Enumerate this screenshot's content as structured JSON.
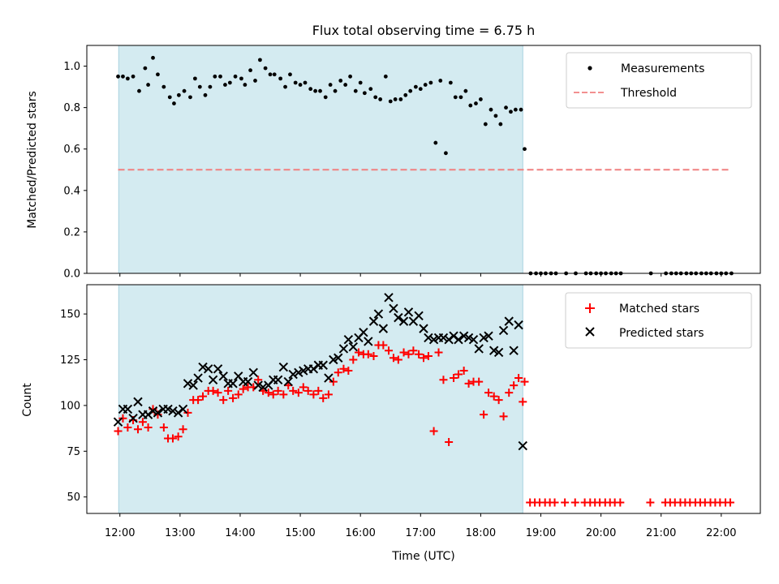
{
  "chart_data": {
    "type": "scatter",
    "title": "Flux total observing time = 6.75 h",
    "xlabel": "Time (UTC)",
    "x_tick_labels": [
      "12:00",
      "13:00",
      "14:00",
      "15:00",
      "16:00",
      "17:00",
      "18:00",
      "19:00",
      "20:00",
      "21:00",
      "22:00"
    ],
    "x_tick_hours": [
      12,
      13,
      14,
      15,
      16,
      17,
      18,
      19,
      20,
      21,
      22
    ],
    "xlim": [
      11.45,
      22.65
    ],
    "shaded_interval": [
      11.98,
      18.7
    ],
    "shade_color": "#d4ebf1",
    "panels": [
      {
        "ylabel": "Matched/Predicted stars",
        "ylim": [
          0,
          1.1
        ],
        "y_ticks": [
          0.0,
          0.2,
          0.4,
          0.6,
          0.8,
          1.0
        ],
        "y_tick_labels": [
          "0.0",
          "0.2",
          "0.4",
          "0.6",
          "0.8",
          "1.0"
        ],
        "series": [
          {
            "name": "Measurements",
            "marker": "dot",
            "color": "#000000",
            "x": [
              11.97,
              12.05,
              12.13,
              12.22,
              12.32,
              12.42,
              12.47,
              12.55,
              12.63,
              12.73,
              12.83,
              12.9,
              12.98,
              13.07,
              13.17,
              13.25,
              13.33,
              13.42,
              13.5,
              13.58,
              13.67,
              13.75,
              13.83,
              13.92,
              14.02,
              14.08,
              14.17,
              14.25,
              14.33,
              14.42,
              14.5,
              14.57,
              14.67,
              14.75,
              14.83,
              14.92,
              15.0,
              15.08,
              15.17,
              15.25,
              15.33,
              15.42,
              15.5,
              15.58,
              15.67,
              15.75,
              15.83,
              15.92,
              16.0,
              16.07,
              16.17,
              16.25,
              16.33,
              16.42,
              16.5,
              16.58,
              16.67,
              16.75,
              16.83,
              16.92,
              17.0,
              17.08,
              17.17,
              17.25,
              17.33,
              17.42,
              17.5,
              17.58,
              17.67,
              17.75,
              17.83,
              17.92,
              18.0,
              18.08,
              18.17,
              18.25,
              18.33,
              18.42,
              18.5,
              18.58,
              18.67,
              18.73,
              18.83,
              18.92,
              19.0,
              19.08,
              19.17,
              19.25,
              19.42,
              19.58,
              19.75,
              19.83,
              19.92,
              20.0,
              20.08,
              20.17,
              20.25,
              20.33,
              20.83,
              21.08,
              21.17,
              21.25,
              21.33,
              21.42,
              21.5,
              21.58,
              21.67,
              21.75,
              21.83,
              21.92,
              22.0,
              22.08,
              22.17
            ],
            "y": [
              0.95,
              0.95,
              0.94,
              0.95,
              0.88,
              0.99,
              0.91,
              1.04,
              0.96,
              0.9,
              0.85,
              0.82,
              0.86,
              0.88,
              0.85,
              0.94,
              0.9,
              0.86,
              0.9,
              0.95,
              0.95,
              0.91,
              0.92,
              0.95,
              0.94,
              0.91,
              0.98,
              0.93,
              1.03,
              0.99,
              0.96,
              0.96,
              0.94,
              0.9,
              0.96,
              0.92,
              0.91,
              0.92,
              0.89,
              0.88,
              0.88,
              0.85,
              0.91,
              0.88,
              0.93,
              0.91,
              0.95,
              0.88,
              0.92,
              0.87,
              0.89,
              0.85,
              0.84,
              0.95,
              0.83,
              0.84,
              0.84,
              0.86,
              0.88,
              0.9,
              0.89,
              0.91,
              0.92,
              0.63,
              0.93,
              0.58,
              0.92,
              0.85,
              0.85,
              0.88,
              0.81,
              0.82,
              0.84,
              0.72,
              0.79,
              0.76,
              0.72,
              0.8,
              0.78,
              0.79,
              0.79,
              0.6,
              0.0,
              0.0,
              0.0,
              0.0,
              0.0,
              0.0,
              0.0,
              0.0,
              0.0,
              0.0,
              0.0,
              0.0,
              0.0,
              0.0,
              0.0,
              0.0,
              0.0,
              0.0,
              0.0,
              0.0,
              0.0,
              0.0,
              0.0,
              0.0,
              0.0,
              0.0,
              0.0,
              0.0,
              0.0,
              0.0,
              0.0
            ]
          },
          {
            "name": "Threshold",
            "marker": "dashed-line",
            "color": "#f08080",
            "x": [
              11.97,
              22.17
            ],
            "y": [
              0.5,
              0.5
            ]
          }
        ],
        "legend": "top-right"
      },
      {
        "ylabel": "Count",
        "ylim": [
          41,
          166
        ],
        "y_ticks": [
          50,
          75,
          100,
          125,
          150
        ],
        "y_tick_labels": [
          "50",
          "75",
          "100",
          "125",
          "150"
        ],
        "series": [
          {
            "name": "Matched stars",
            "marker": "plus",
            "color": "#ff0000",
            "x": [
              11.97,
              12.05,
              12.13,
              12.22,
              12.3,
              12.38,
              12.47,
              12.55,
              12.63,
              12.73,
              12.8,
              12.88,
              12.97,
              13.05,
              13.13,
              13.22,
              13.3,
              13.38,
              13.47,
              13.55,
              13.63,
              13.72,
              13.8,
              13.88,
              13.97,
              14.05,
              14.13,
              14.22,
              14.3,
              14.38,
              14.47,
              14.55,
              14.63,
              14.72,
              14.8,
              14.88,
              14.97,
              15.05,
              15.13,
              15.22,
              15.3,
              15.38,
              15.47,
              15.55,
              15.63,
              15.72,
              15.8,
              15.88,
              15.97,
              16.05,
              16.13,
              16.22,
              16.3,
              16.38,
              16.47,
              16.55,
              16.63,
              16.72,
              16.8,
              16.88,
              16.97,
              17.05,
              17.13,
              17.22,
              17.3,
              17.38,
              17.47,
              17.55,
              17.63,
              17.72,
              17.8,
              17.88,
              17.97,
              18.05,
              18.13,
              18.22,
              18.3,
              18.38,
              18.47,
              18.55,
              18.63,
              18.7,
              18.73,
              18.82,
              18.9,
              18.98,
              19.07,
              19.15,
              19.23,
              19.4,
              19.57,
              19.73,
              19.82,
              19.9,
              19.98,
              20.07,
              20.15,
              20.23,
              20.32,
              20.82,
              21.07,
              21.15,
              21.23,
              21.32,
              21.4,
              21.48,
              21.57,
              21.65,
              21.73,
              21.82,
              21.9,
              21.98,
              22.07,
              22.15
            ],
            "y": [
              86,
              93,
              88,
              92,
              87,
              91,
              88,
              98,
              95,
              88,
              82,
              82,
              83,
              87,
              96,
              103,
              103,
              105,
              108,
              108,
              107,
              103,
              108,
              104,
              106,
              109,
              110,
              110,
              114,
              108,
              107,
              106,
              108,
              106,
              111,
              108,
              107,
              110,
              108,
              106,
              108,
              104,
              106,
              113,
              118,
              120,
              119,
              125,
              129,
              128,
              128,
              127,
              133,
              133,
              130,
              126,
              125,
              129,
              128,
              130,
              128,
              126,
              127,
              86,
              129,
              114,
              80,
              115,
              117,
              119,
              112,
              113,
              113,
              95,
              107,
              105,
              103,
              94,
              107,
              111,
              115,
              102,
              113,
              47,
              47,
              47,
              47,
              47,
              47,
              47,
              47,
              47,
              47,
              47,
              47,
              47,
              47,
              47,
              47,
              47,
              47,
              47,
              47,
              47,
              47,
              47,
              47,
              47,
              47,
              47,
              47,
              47,
              47,
              47
            ]
          },
          {
            "name": "Predicted stars",
            "marker": "x",
            "color": "#000000",
            "x": [
              11.97,
              12.05,
              12.13,
              12.22,
              12.3,
              12.38,
              12.47,
              12.55,
              12.63,
              12.72,
              12.8,
              12.88,
              12.97,
              13.05,
              13.13,
              13.22,
              13.3,
              13.38,
              13.47,
              13.55,
              13.63,
              13.72,
              13.8,
              13.88,
              13.97,
              14.05,
              14.13,
              14.22,
              14.3,
              14.38,
              14.47,
              14.55,
              14.63,
              14.72,
              14.8,
              14.88,
              14.97,
              15.05,
              15.13,
              15.22,
              15.3,
              15.38,
              15.47,
              15.55,
              15.63,
              15.72,
              15.8,
              15.88,
              15.97,
              16.05,
              16.13,
              16.22,
              16.3,
              16.38,
              16.47,
              16.55,
              16.63,
              16.72,
              16.8,
              16.88,
              16.97,
              17.05,
              17.13,
              17.22,
              17.3,
              17.38,
              17.47,
              17.55,
              17.63,
              17.72,
              17.8,
              17.88,
              17.97,
              18.05,
              18.13,
              18.22,
              18.3,
              18.38,
              18.47,
              18.55,
              18.63,
              18.7
            ],
            "y": [
              91,
              98,
              98,
              93,
              102,
              95,
              95,
              97,
              96,
              98,
              98,
              97,
              96,
              98,
              112,
              111,
              115,
              121,
              120,
              114,
              120,
              116,
              112,
              112,
              116,
              113,
              113,
              118,
              111,
              110,
              111,
              114,
              114,
              121,
              113,
              117,
              118,
              119,
              120,
              120,
              122,
              122,
              115,
              125,
              126,
              131,
              136,
              132,
              137,
              140,
              135,
              146,
              150,
              142,
              159,
              153,
              148,
              146,
              151,
              146,
              149,
              142,
              137,
              136,
              137,
              137,
              136,
              138,
              136,
              138,
              137,
              136,
              131,
              137,
              138,
              130,
              129,
              141,
              146,
              130,
              144,
              78
            ]
          }
        ],
        "legend": "top-right"
      }
    ]
  }
}
